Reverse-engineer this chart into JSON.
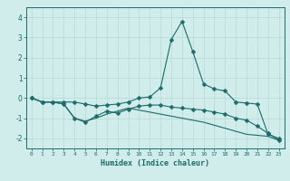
{
  "xlabel": "Humidex (Indice chaleur)",
  "x": [
    0,
    1,
    2,
    3,
    4,
    5,
    6,
    7,
    8,
    9,
    10,
    11,
    12,
    13,
    14,
    15,
    16,
    17,
    18,
    19,
    20,
    21,
    22,
    23
  ],
  "line1": [
    0.0,
    -0.2,
    -0.2,
    -0.2,
    -0.2,
    -0.3,
    -0.4,
    -0.35,
    -0.3,
    -0.2,
    0.0,
    0.05,
    0.5,
    2.9,
    3.8,
    2.3,
    0.7,
    0.45,
    0.35,
    -0.2,
    -0.25,
    -0.3,
    -1.8,
    -2.0
  ],
  "line2": [
    0.0,
    -0.2,
    -0.2,
    -0.3,
    -1.0,
    -1.2,
    -0.9,
    -0.65,
    -0.75,
    -0.55,
    -0.4,
    -0.35,
    -0.35,
    -0.45,
    -0.5,
    -0.55,
    -0.6,
    -0.7,
    -0.8,
    -1.0,
    -1.1,
    -1.4,
    -1.75,
    -2.1
  ],
  "line3": [
    0.0,
    -0.2,
    -0.2,
    -0.3,
    -1.0,
    -1.15,
    -1.0,
    -0.8,
    -0.65,
    -0.5,
    -0.6,
    -0.7,
    -0.8,
    -0.9,
    -1.0,
    -1.1,
    -1.2,
    -1.35,
    -1.5,
    -1.65,
    -1.8,
    -1.85,
    -1.9,
    -2.1
  ],
  "line_color": "#1a6b6b",
  "bg_color": "#d0edeb",
  "grid_color": "#b8d8d5",
  "ylim": [
    -2.5,
    4.5
  ],
  "xlim": [
    -0.5,
    23.5
  ],
  "yticks": [
    -2,
    -1,
    0,
    1,
    2,
    3,
    4
  ],
  "xticks": [
    0,
    1,
    2,
    3,
    4,
    5,
    6,
    7,
    8,
    9,
    10,
    11,
    12,
    13,
    14,
    15,
    16,
    17,
    18,
    19,
    20,
    21,
    22,
    23
  ]
}
